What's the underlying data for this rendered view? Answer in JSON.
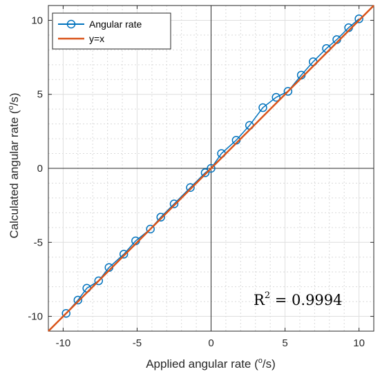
{
  "chart_data": {
    "type": "line",
    "xlabel_main": "Applied angular rate (",
    "xlabel_unit_sup": "o",
    "xlabel_unit": "/s)",
    "ylabel_main": "Calculated angular rate (",
    "ylabel_unit_sup": "o",
    "ylabel_unit": "/s)",
    "xlim": [
      -11,
      11
    ],
    "ylim": [
      -11,
      11
    ],
    "xticks": [
      -10,
      -5,
      0,
      5,
      10
    ],
    "yticks": [
      -10,
      -5,
      0,
      5,
      10
    ],
    "grid": true,
    "minor_grid": true,
    "legend_position": "top-left",
    "annotation": {
      "base": "R",
      "sup": "2",
      "rest": " = 0.9994"
    },
    "series": [
      {
        "name": "Angular rate",
        "color": "#0072BD",
        "marker": "circle",
        "x": [
          -9.8,
          -9.0,
          -8.4,
          -7.6,
          -6.9,
          -5.9,
          -5.1,
          -4.1,
          -3.4,
          -2.5,
          -1.4,
          -0.4,
          0.0,
          0.7,
          1.7,
          2.6,
          3.5,
          4.4,
          5.2,
          6.1,
          6.9,
          7.8,
          8.5,
          9.3,
          10.0
        ],
        "y": [
          -9.8,
          -8.9,
          -8.1,
          -7.6,
          -6.7,
          -5.8,
          -4.9,
          -4.1,
          -3.3,
          -2.4,
          -1.3,
          -0.3,
          0.0,
          1.0,
          1.9,
          2.9,
          4.1,
          4.8,
          5.2,
          6.3,
          7.2,
          8.1,
          8.7,
          9.5,
          10.1
        ]
      },
      {
        "name": "y=x",
        "color": "#D95319",
        "marker": "none",
        "x": [
          -11,
          11
        ],
        "y": [
          -11,
          11
        ]
      }
    ]
  }
}
